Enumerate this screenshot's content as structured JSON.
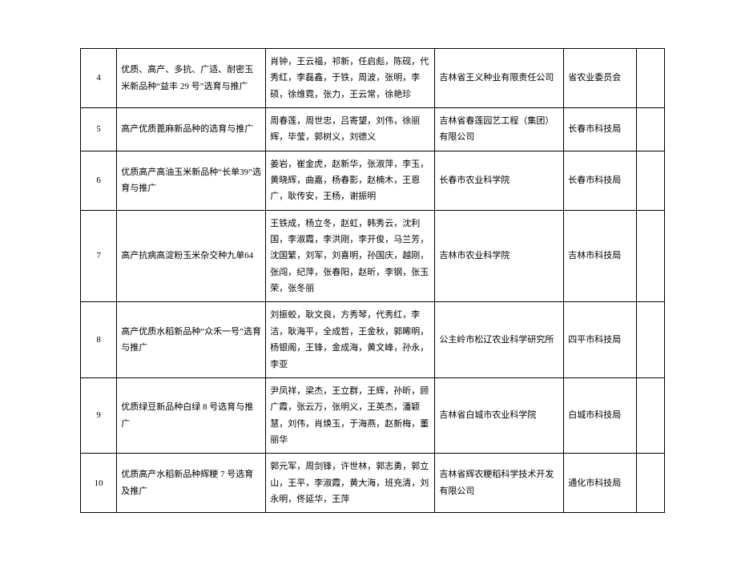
{
  "table": {
    "font_size": 11,
    "line_height": 1.85,
    "border_color": "#000000",
    "background_color": "#ffffff",
    "text_color": "#000000",
    "columns": [
      {
        "key": "idx",
        "width": 36,
        "align": "center"
      },
      {
        "key": "name",
        "width": 148,
        "align": "left"
      },
      {
        "key": "people",
        "width": 168,
        "align": "left"
      },
      {
        "key": "org",
        "width": 128,
        "align": "left"
      },
      {
        "key": "rec",
        "width": 72,
        "align": "left"
      },
      {
        "key": "empty",
        "width": 28,
        "align": "left"
      }
    ],
    "rows": [
      {
        "idx": "4",
        "name": "优质、高产、多抗、广适、耐密玉米新品种“益丰 29 号”选育与推广",
        "people": "肖钟，王云福，祁新，任启彪，陈砚，代秀红，李磊鑫，于铁，周波，张明，李硕，徐维霓，张力，王云常，徐艳珍",
        "org": "吉林省王义种业有限责任公司",
        "rec": "省农业委员会",
        "empty": ""
      },
      {
        "idx": "5",
        "name": "高产优质蓖麻新品种的选育与推广",
        "people": "周春莲，周世忠，吕寄望，刘伟，徐丽辉，毕莹，郭树义，刘德义",
        "org": "吉林省春莲园艺工程（集团）有限公司",
        "rec": "长春市科技局",
        "empty": ""
      },
      {
        "idx": "6",
        "name": "优质高产高油玉米新品种“长单39”选育与推广",
        "people": "姜岩，崔金虎，赵新华，张淑萍，李玉，黄晓辉，曲嘉，杨春影，赵楠木，王恩广，耿传安，王杨，谢振明",
        "org": "长春市农业科学院",
        "rec": "长春市科技局",
        "empty": ""
      },
      {
        "idx": "7",
        "name": "高产抗病高淀粉玉米杂交种九单64",
        "people": "王铁成，杨立冬，赵虹，韩秀云，沈利国，李淑霞，李洪刚，李开俊，马兰芳，沈国繁，刘军，刘喜明，孙国庆，越刚，张闯，纪萍，张春阳，赵昕，李钢，张玉荣，张冬丽",
        "org": "吉林市农业科学院",
        "rec": "吉林市科技局",
        "empty": ""
      },
      {
        "idx": "8",
        "name": "高产优质水稻新品种“众禾一号”选育与推广",
        "people": "刘振蛟，耿文良，方秀琴，代秀红，李洁，耿海平，全成哲，王金秋，郭晞明，杨银阁，王锋，金成海，黄文峰，孙永，李亚",
        "org": "公主岭市松辽农业科学研究所",
        "rec": "四平市科技局",
        "empty": ""
      },
      {
        "idx": "9",
        "name": "优质绿豆新品种白绿 8 号选育与推广",
        "people": "尹凤祥，梁杰，王立群，王辉，孙昕，顾广霞，张云万，张明义，王英杰，潘颖慧，刘伟，肖焕玉，于海燕，赵新梅，董丽华",
        "org": "吉林省白城市农业科学院",
        "rec": "白城市科技局",
        "empty": ""
      },
      {
        "idx": "10",
        "name": "优质高产水稻新品种辉粳 7 号选育及推广",
        "people": "郭元军，周剑锋，许世林，郭志勇，郭立山，王平，李淑霞，黄大海，班充清，刘永明，佟延华，王萍",
        "org": "吉林省辉农粳稻科学技术开发有限公司",
        "rec": "通化市科技局",
        "empty": ""
      }
    ]
  }
}
